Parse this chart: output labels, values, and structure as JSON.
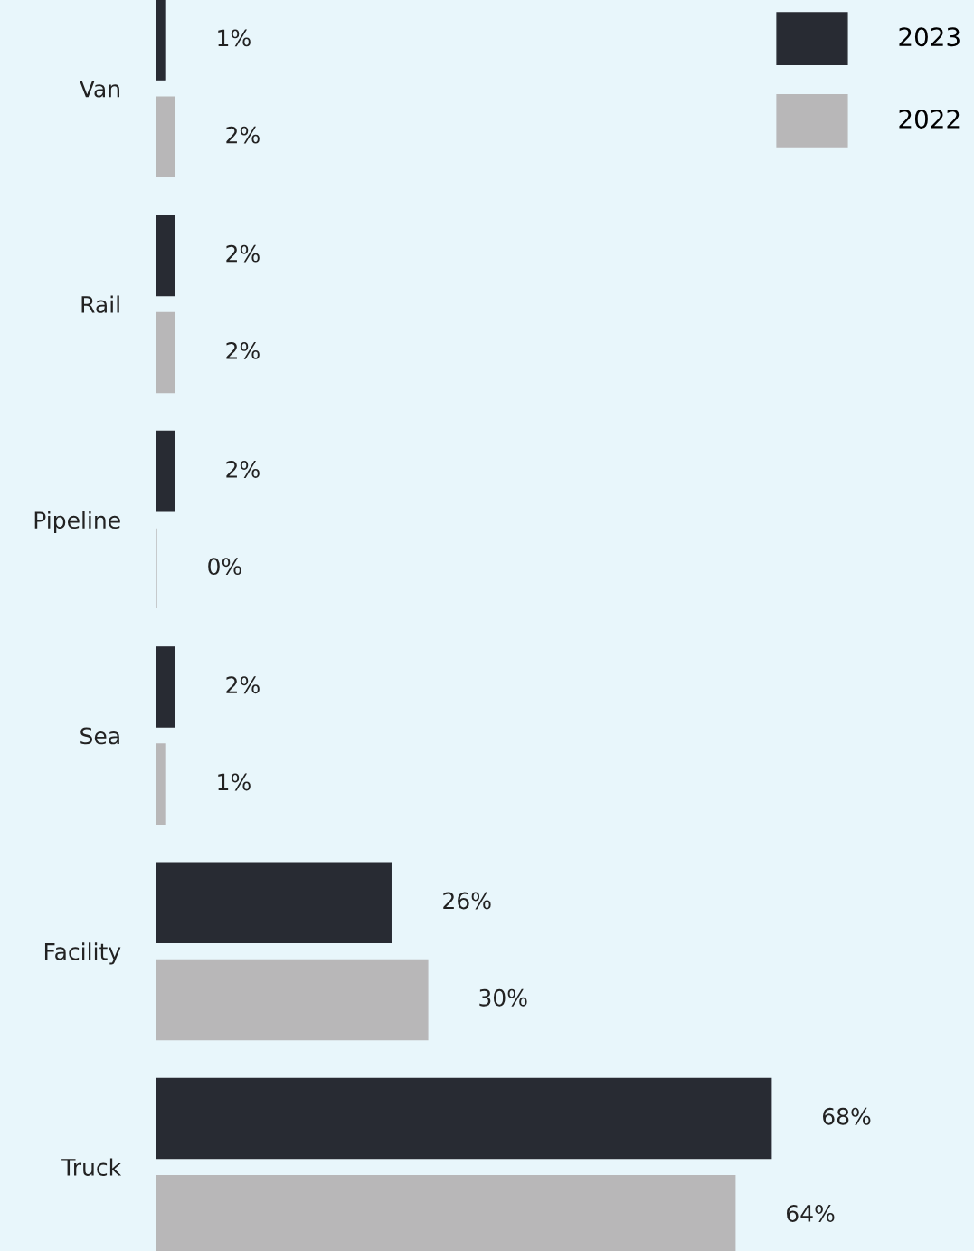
{
  "chart_data": {
    "type": "bar",
    "orientation": "horizontal",
    "categories": [
      "Van",
      "Rail",
      "Pipeline",
      "Sea",
      "Facility",
      "Truck"
    ],
    "series": [
      {
        "name": "2023",
        "color": "#282b33",
        "values": [
          1,
          2,
          2,
          2,
          26,
          68
        ],
        "value_labels": [
          "1%",
          "2%",
          "2%",
          "2%",
          "26%",
          "68%"
        ]
      },
      {
        "name": "2022",
        "color": "#b8b7b8",
        "values": [
          2,
          2,
          0,
          1,
          30,
          64
        ],
        "value_labels": [
          "2%",
          "2%",
          "0%",
          "1%",
          "30%",
          "64%"
        ]
      }
    ],
    "legend": "top right",
    "grid": false,
    "tick_labels": "y"
  }
}
